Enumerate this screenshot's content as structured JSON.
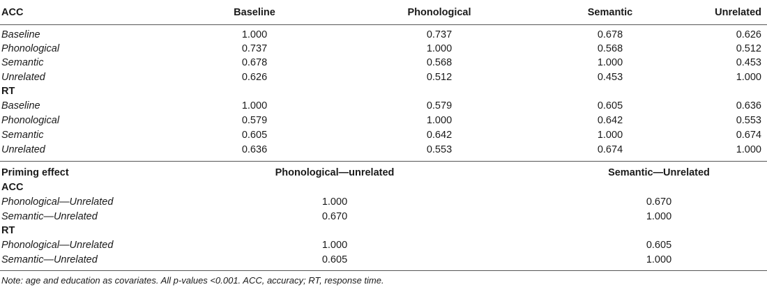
{
  "table1": {
    "corner": "ACC",
    "columns": [
      "Baseline",
      "Phonological",
      "Semantic",
      "Unrelated"
    ],
    "acc_rows": [
      {
        "label": "Baseline",
        "values": [
          "1.000",
          "0.737",
          "0.678",
          "0.626"
        ]
      },
      {
        "label": "Phonological",
        "values": [
          "0.737",
          "1.000",
          "0.568",
          "0.512"
        ]
      },
      {
        "label": "Semantic",
        "values": [
          "0.678",
          "0.568",
          "1.000",
          "0.453"
        ]
      },
      {
        "label": "Unrelated",
        "values": [
          "0.626",
          "0.512",
          "0.453",
          "1.000"
        ]
      }
    ],
    "rt_label": "RT",
    "rt_rows": [
      {
        "label": "Baseline",
        "values": [
          "1.000",
          "0.579",
          "0.605",
          "0.636"
        ]
      },
      {
        "label": "Phonological",
        "values": [
          "0.579",
          "1.000",
          "0.642",
          "0.553"
        ]
      },
      {
        "label": "Semantic",
        "values": [
          "0.605",
          "0.642",
          "1.000",
          "0.674"
        ]
      },
      {
        "label": "Unrelated",
        "values": [
          "0.636",
          "0.553",
          "0.674",
          "1.000"
        ]
      }
    ]
  },
  "table2": {
    "corner": "Priming effect",
    "columns": [
      "Phonological—unrelated",
      "Semantic—Unrelated"
    ],
    "acc_label": "ACC",
    "acc_rows": [
      {
        "label": "Phonological—Unrelated",
        "values": [
          "1.000",
          "0.670"
        ]
      },
      {
        "label": "Semantic—Unrelated",
        "values": [
          "0.670",
          "1.000"
        ]
      }
    ],
    "rt_label": "RT",
    "rt_rows": [
      {
        "label": "Phonological—Unrelated",
        "values": [
          "1.000",
          "0.605"
        ]
      },
      {
        "label": "Semantic—Unrelated",
        "values": [
          "0.605",
          "1.000"
        ]
      }
    ]
  },
  "note": "Note: age and education as covariates. All p-values <0.001. ACC, accuracy; RT, response time."
}
